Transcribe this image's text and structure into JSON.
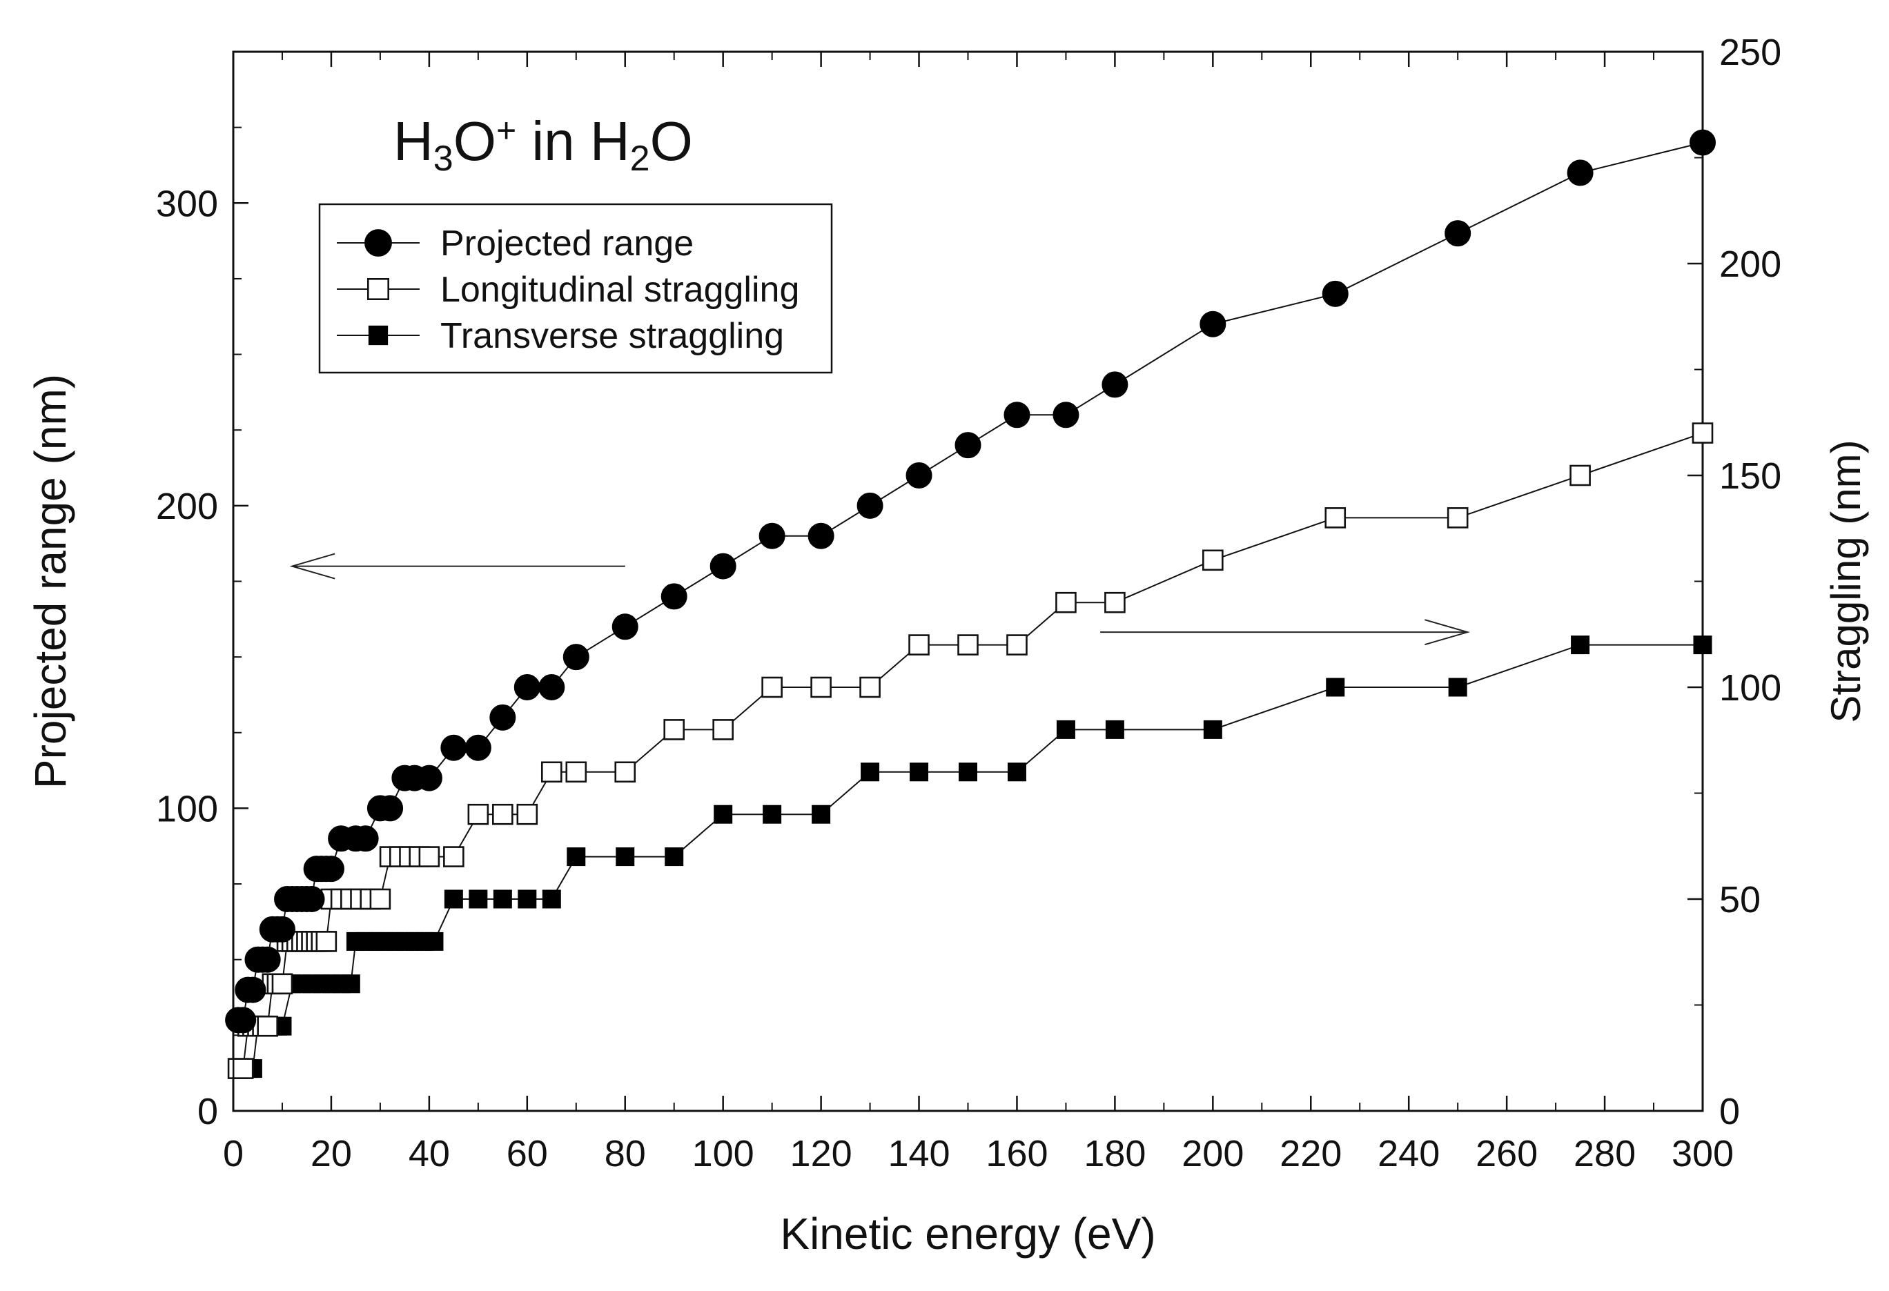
{
  "chart_data": {
    "type": "scatter",
    "title": {
      "parts": [
        {
          "text": "H",
          "style": "normal"
        },
        {
          "text": "3",
          "style": "sub"
        },
        {
          "text": "O",
          "style": "normal"
        },
        {
          "text": "+",
          "style": "sup"
        },
        {
          "text": " in H",
          "style": "normal"
        },
        {
          "text": "2",
          "style": "sub"
        },
        {
          "text": "O",
          "style": "normal"
        }
      ]
    },
    "xlabel": "Kinetic energy (eV)",
    "ylabel_left": "Projected range (nm)",
    "ylabel_right": "Straggling (nm)",
    "xlim": [
      0,
      300
    ],
    "ylim_left": [
      0,
      350
    ],
    "ylim_right": [
      0,
      250
    ],
    "x_ticks": [
      0,
      20,
      40,
      60,
      80,
      100,
      120,
      140,
      160,
      180,
      200,
      220,
      240,
      260,
      280,
      300
    ],
    "x_tick_labels": [
      "0",
      "20",
      "40",
      "60",
      "80",
      "100",
      "120",
      "140",
      "160",
      "180",
      "200",
      "220",
      "240",
      "260",
      "280",
      "300"
    ],
    "y_left_ticks": [
      0,
      100,
      200,
      300
    ],
    "y_left_tick_labels": [
      "0",
      "100",
      "200",
      "300"
    ],
    "y_right_ticks": [
      0,
      50,
      100,
      150,
      200,
      250
    ],
    "y_right_tick_labels": [
      "0",
      "50",
      "100",
      "150",
      "200",
      "250"
    ],
    "legend_position": "upper-left",
    "series": [
      {
        "name": "Projected range",
        "axis": "left",
        "marker": "filled-circle",
        "points": [
          [
            1,
            30
          ],
          [
            2,
            30
          ],
          [
            3,
            40
          ],
          [
            4,
            40
          ],
          [
            5,
            50
          ],
          [
            6,
            50
          ],
          [
            7,
            50
          ],
          [
            8,
            60
          ],
          [
            9,
            60
          ],
          [
            10,
            60
          ],
          [
            11,
            70
          ],
          [
            12,
            70
          ],
          [
            13,
            70
          ],
          [
            14,
            70
          ],
          [
            15,
            70
          ],
          [
            16,
            70
          ],
          [
            17,
            80
          ],
          [
            18,
            80
          ],
          [
            19,
            80
          ],
          [
            20,
            80
          ],
          [
            22,
            90
          ],
          [
            25,
            90
          ],
          [
            27,
            90
          ],
          [
            30,
            100
          ],
          [
            32,
            100
          ],
          [
            35,
            110
          ],
          [
            37,
            110
          ],
          [
            40,
            110
          ],
          [
            45,
            120
          ],
          [
            50,
            120
          ],
          [
            55,
            130
          ],
          [
            60,
            140
          ],
          [
            65,
            140
          ],
          [
            70,
            150
          ],
          [
            80,
            160
          ],
          [
            90,
            170
          ],
          [
            100,
            180
          ],
          [
            110,
            190
          ],
          [
            120,
            190
          ],
          [
            130,
            200
          ],
          [
            140,
            210
          ],
          [
            150,
            220
          ],
          [
            160,
            230
          ],
          [
            170,
            230
          ],
          [
            180,
            240
          ],
          [
            200,
            260
          ],
          [
            225,
            270
          ],
          [
            250,
            290
          ],
          [
            275,
            310
          ],
          [
            300,
            320
          ]
        ]
      },
      {
        "name": "Longitudinal straggling",
        "axis": "right",
        "marker": "open-square",
        "points": [
          [
            1,
            10
          ],
          [
            2,
            10
          ],
          [
            3,
            20
          ],
          [
            4,
            20
          ],
          [
            5,
            20
          ],
          [
            6,
            20
          ],
          [
            7,
            20
          ],
          [
            8,
            30
          ],
          [
            9,
            30
          ],
          [
            10,
            30
          ],
          [
            11,
            40
          ],
          [
            12,
            40
          ],
          [
            13,
            40
          ],
          [
            14,
            40
          ],
          [
            15,
            40
          ],
          [
            16,
            40
          ],
          [
            17,
            40
          ],
          [
            18,
            40
          ],
          [
            19,
            40
          ],
          [
            20,
            50
          ],
          [
            22,
            50
          ],
          [
            24,
            50
          ],
          [
            26,
            50
          ],
          [
            28,
            50
          ],
          [
            30,
            50
          ],
          [
            32,
            60
          ],
          [
            34,
            60
          ],
          [
            36,
            60
          ],
          [
            38,
            60
          ],
          [
            40,
            60
          ],
          [
            45,
            60
          ],
          [
            50,
            70
          ],
          [
            55,
            70
          ],
          [
            60,
            70
          ],
          [
            65,
            80
          ],
          [
            70,
            80
          ],
          [
            80,
            80
          ],
          [
            90,
            90
          ],
          [
            100,
            90
          ],
          [
            110,
            100
          ],
          [
            120,
            100
          ],
          [
            130,
            100
          ],
          [
            140,
            110
          ],
          [
            150,
            110
          ],
          [
            160,
            110
          ],
          [
            170,
            120
          ],
          [
            180,
            120
          ],
          [
            200,
            130
          ],
          [
            225,
            140
          ],
          [
            250,
            140
          ],
          [
            275,
            150
          ],
          [
            300,
            160
          ]
        ]
      },
      {
        "name": "Transverse straggling",
        "axis": "right",
        "marker": "filled-square",
        "points": [
          [
            1,
            10
          ],
          [
            2,
            10
          ],
          [
            3,
            10
          ],
          [
            4,
            10
          ],
          [
            5,
            20
          ],
          [
            6,
            20
          ],
          [
            7,
            20
          ],
          [
            8,
            20
          ],
          [
            9,
            20
          ],
          [
            10,
            20
          ],
          [
            12,
            30
          ],
          [
            14,
            30
          ],
          [
            16,
            30
          ],
          [
            18,
            30
          ],
          [
            20,
            30
          ],
          [
            22,
            30
          ],
          [
            24,
            30
          ],
          [
            25,
            40
          ],
          [
            27,
            40
          ],
          [
            29,
            40
          ],
          [
            31,
            40
          ],
          [
            33,
            40
          ],
          [
            35,
            40
          ],
          [
            37,
            40
          ],
          [
            39,
            40
          ],
          [
            41,
            40
          ],
          [
            45,
            50
          ],
          [
            50,
            50
          ],
          [
            55,
            50
          ],
          [
            60,
            50
          ],
          [
            65,
            50
          ],
          [
            70,
            60
          ],
          [
            80,
            60
          ],
          [
            90,
            60
          ],
          [
            100,
            70
          ],
          [
            110,
            70
          ],
          [
            120,
            70
          ],
          [
            130,
            80
          ],
          [
            140,
            80
          ],
          [
            150,
            80
          ],
          [
            160,
            80
          ],
          [
            170,
            90
          ],
          [
            180,
            90
          ],
          [
            200,
            90
          ],
          [
            225,
            100
          ],
          [
            250,
            100
          ],
          [
            275,
            110
          ],
          [
            300,
            110
          ]
        ]
      }
    ],
    "annotations": [
      {
        "name": "left-axis-arrow",
        "from": [
          80,
          180
        ],
        "to": [
          12,
          180
        ],
        "axis": "left",
        "meaning": "projected range reads on left axis"
      },
      {
        "name": "right-axis-arrow",
        "from": [
          177,
          113
        ],
        "to": [
          252,
          113
        ],
        "axis": "right",
        "meaning": "straggling reads on right axis"
      }
    ]
  }
}
